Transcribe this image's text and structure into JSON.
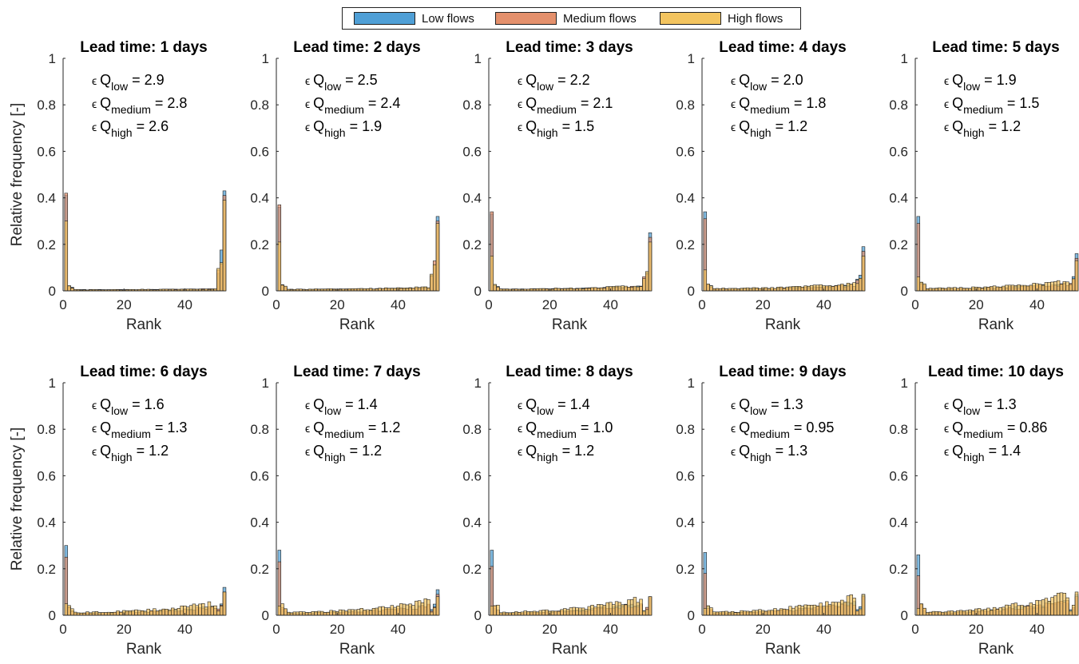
{
  "legend": {
    "items": [
      {
        "label": "Low flows",
        "color": "#4f9fd6"
      },
      {
        "label": "Medium flows",
        "color": "#e4906c"
      },
      {
        "label": "High flows",
        "color": "#f3c45f"
      }
    ],
    "placement": "top-center"
  },
  "chart_data": {
    "type": "bar",
    "layout": "2x5 small multiples",
    "xlabel": "Rank",
    "ylabel": "Relative frequency [-]",
    "xlim": [
      0,
      53
    ],
    "ylim": [
      0,
      1
    ],
    "xticks": [
      0,
      20,
      40
    ],
    "yticks": [
      0,
      0.2,
      0.4,
      0.6,
      0.8,
      1
    ],
    "yticklabels": [
      "0",
      "0.2",
      "0.4",
      "0.6",
      "0.8",
      "1"
    ],
    "bins": 53,
    "grid": false,
    "panels": [
      {
        "title": "Lead time: 1 days",
        "eps": {
          "low": "2.9",
          "medium": "2.8",
          "high": "2.6"
        },
        "series": {
          "low": {
            "first": 0.41,
            "last": 0.43,
            "middle": 0.008
          },
          "medium": {
            "first": 0.42,
            "last": 0.41,
            "middle": 0.008
          },
          "high": {
            "first": 0.3,
            "last": 0.39,
            "middle": 0.008
          }
        }
      },
      {
        "title": "Lead time: 2 days",
        "eps": {
          "low": "2.5",
          "medium": "2.4",
          "high": "1.9"
        },
        "series": {
          "low": {
            "first": 0.36,
            "last": 0.32,
            "middle": 0.01
          },
          "medium": {
            "first": 0.37,
            "last": 0.3,
            "middle": 0.01
          },
          "high": {
            "first": 0.21,
            "last": 0.29,
            "middle": 0.012
          }
        }
      },
      {
        "title": "Lead time: 3 days",
        "eps": {
          "low": "2.2",
          "medium": "2.1",
          "high": "1.5"
        },
        "series": {
          "low": {
            "first": 0.33,
            "last": 0.25,
            "middle": 0.011
          },
          "medium": {
            "first": 0.34,
            "last": 0.23,
            "middle": 0.011
          },
          "high": {
            "first": 0.15,
            "last": 0.21,
            "middle": 0.013
          }
        }
      },
      {
        "title": "Lead time: 4 days",
        "eps": {
          "low": "2.0",
          "medium": "1.8",
          "high": "1.2"
        },
        "series": {
          "low": {
            "first": 0.34,
            "last": 0.19,
            "middle": 0.012
          },
          "medium": {
            "first": 0.31,
            "last": 0.17,
            "middle": 0.012
          },
          "high": {
            "first": 0.09,
            "last": 0.15,
            "middle": 0.016
          }
        }
      },
      {
        "title": "Lead time: 5 days",
        "eps": {
          "low": "1.9",
          "medium": "1.5",
          "high": "1.2"
        },
        "series": {
          "low": {
            "first": 0.32,
            "last": 0.16,
            "middle": 0.013
          },
          "medium": {
            "first": 0.29,
            "last": 0.14,
            "middle": 0.013
          },
          "high": {
            "first": 0.06,
            "last": 0.13,
            "middle": 0.018
          }
        }
      },
      {
        "title": "Lead time: 6 days",
        "eps": {
          "low": "1.6",
          "medium": "1.3",
          "high": "1.2"
        },
        "series": {
          "low": {
            "first": 0.3,
            "last": 0.12,
            "middle": 0.014
          },
          "medium": {
            "first": 0.25,
            "last": 0.1,
            "middle": 0.014
          },
          "high": {
            "first": 0.05,
            "last": 0.1,
            "middle": 0.02
          }
        }
      },
      {
        "title": "Lead time: 7 days",
        "eps": {
          "low": "1.4",
          "medium": "1.2",
          "high": "1.2"
        },
        "series": {
          "low": {
            "first": 0.28,
            "last": 0.11,
            "middle": 0.014
          },
          "medium": {
            "first": 0.23,
            "last": 0.09,
            "middle": 0.014
          },
          "high": {
            "first": 0.04,
            "last": 0.08,
            "middle": 0.021
          }
        }
      },
      {
        "title": "Lead time: 8 days",
        "eps": {
          "low": "1.4",
          "medium": "1.0",
          "high": "1.2"
        },
        "series": {
          "low": {
            "first": 0.28,
            "last": 0.08,
            "middle": 0.015
          },
          "medium": {
            "first": 0.21,
            "last": 0.08,
            "middle": 0.015
          },
          "high": {
            "first": 0.04,
            "last": 0.08,
            "middle": 0.022
          }
        }
      },
      {
        "title": "Lead time: 9 days",
        "eps": {
          "low": "1.3",
          "medium": "0.95",
          "high": "1.3"
        },
        "series": {
          "low": {
            "first": 0.27,
            "last": 0.09,
            "middle": 0.015
          },
          "medium": {
            "first": 0.18,
            "last": 0.08,
            "middle": 0.015
          },
          "high": {
            "first": 0.03,
            "last": 0.09,
            "middle": 0.022
          }
        }
      },
      {
        "title": "Lead time: 10 days",
        "eps": {
          "low": "1.3",
          "medium": "0.86",
          "high": "1.4"
        },
        "series": {
          "low": {
            "first": 0.26,
            "last": 0.09,
            "middle": 0.016
          },
          "medium": {
            "first": 0.17,
            "last": 0.08,
            "middle": 0.016
          },
          "high": {
            "first": 0.03,
            "last": 0.1,
            "middle": 0.023
          }
        }
      }
    ]
  }
}
